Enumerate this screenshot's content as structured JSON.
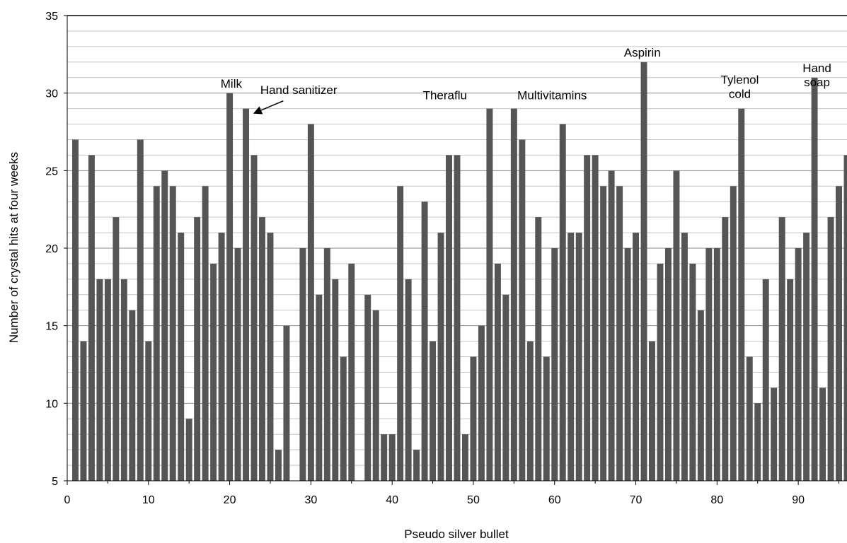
{
  "chart_data": {
    "type": "bar",
    "xlabel": "Pseudo silver bullet",
    "ylabel": "Number of crystal hits at four weeks",
    "ylim": [
      5,
      35
    ],
    "xlim": [
      0,
      96
    ],
    "y_ticks": [
      5,
      10,
      15,
      20,
      25,
      30,
      35
    ],
    "x_ticks": [
      0,
      10,
      20,
      30,
      40,
      50,
      60,
      70,
      80,
      90
    ],
    "y_minor_step": 1,
    "grid": "horizontal",
    "bar_color": "#555555",
    "x": [
      1,
      2,
      3,
      4,
      5,
      6,
      7,
      8,
      9,
      10,
      11,
      12,
      13,
      14,
      15,
      16,
      17,
      18,
      19,
      20,
      21,
      22,
      23,
      24,
      25,
      26,
      27,
      28,
      29,
      30,
      31,
      32,
      33,
      34,
      35,
      36,
      37,
      38,
      39,
      40,
      41,
      42,
      43,
      44,
      45,
      46,
      47,
      48,
      49,
      50,
      51,
      52,
      53,
      54,
      55,
      56,
      57,
      58,
      59,
      60,
      61,
      62,
      63,
      64,
      65,
      66,
      67,
      68,
      69,
      70,
      71,
      72,
      73,
      74,
      75,
      76,
      77,
      78,
      79,
      80,
      81,
      82,
      83,
      84,
      85,
      86,
      87,
      88,
      89,
      90,
      91,
      92,
      93,
      94,
      95,
      96
    ],
    "values": [
      27,
      14,
      26,
      18,
      18,
      22,
      18,
      16,
      27,
      14,
      24,
      25,
      24,
      21,
      9,
      22,
      24,
      19,
      21,
      30,
      20,
      29,
      26,
      22,
      21,
      7,
      15,
      5,
      20,
      28,
      17,
      20,
      18,
      13,
      19,
      5,
      17,
      16,
      8,
      8,
      24,
      18,
      7,
      23,
      14,
      21,
      26,
      26,
      8,
      13,
      15,
      29,
      19,
      17,
      29,
      27,
      14,
      22,
      13,
      20,
      28,
      21,
      21,
      26,
      26,
      24,
      25,
      24,
      20,
      21,
      32,
      14,
      19,
      20,
      25,
      21,
      19,
      16,
      20,
      20,
      22,
      24,
      29,
      13,
      10,
      18,
      11,
      22,
      18,
      20,
      21,
      31,
      11,
      22,
      24,
      26
    ],
    "annotations": [
      {
        "id": "milk",
        "lines": [
          "Milk"
        ],
        "x": 20.2,
        "y": 30.35
      },
      {
        "id": "hand-sanitizer",
        "lines": [
          "Hand sanitizer"
        ],
        "x": 28.5,
        "y": 29.95,
        "arrow_from": [
          26.6,
          29.5
        ],
        "arrow_to": [
          23.0,
          28.7
        ]
      },
      {
        "id": "theraflu",
        "lines": [
          "Theraflu"
        ],
        "x": 46.5,
        "y": 29.6
      },
      {
        "id": "multivitamins",
        "lines": [
          "Multivitamins"
        ],
        "x": 59.7,
        "y": 29.6
      },
      {
        "id": "aspirin",
        "lines": [
          "Aspirin"
        ],
        "x": 70.8,
        "y": 32.35
      },
      {
        "id": "tylenol-cold",
        "lines": [
          "Tylenol",
          "cold"
        ],
        "x": 82.8,
        "y": 30.6
      },
      {
        "id": "hand-soap",
        "lines": [
          "Hand",
          "soap"
        ],
        "x": 92.3,
        "y": 31.35
      }
    ]
  }
}
